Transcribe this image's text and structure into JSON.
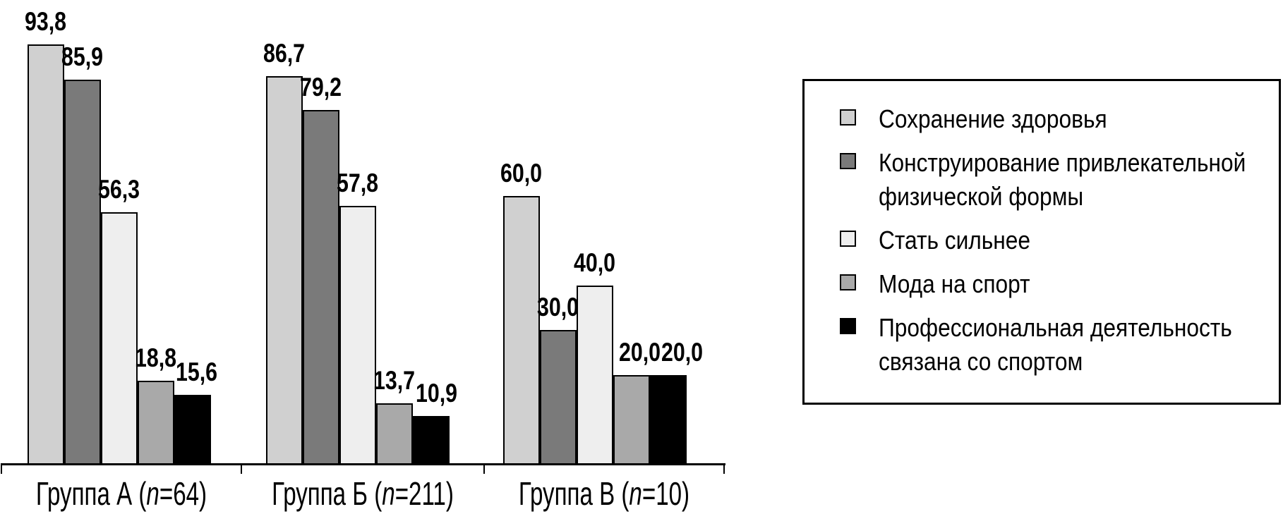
{
  "chart_data": {
    "type": "bar",
    "title": "",
    "categories": [
      "Группа А (n=64)",
      "Группа Б (n=211)",
      "Группа В (n=10)"
    ],
    "category_parts": [
      {
        "pre": "Группа А (",
        "italic": "n",
        "post": "=64)"
      },
      {
        "pre": "Группа Б (",
        "italic": "n",
        "post": "=211)"
      },
      {
        "pre": "Группа В (",
        "italic": "n",
        "post": "=10)"
      }
    ],
    "series": [
      {
        "name": "Сохранение здоровья",
        "color": "#d0d0d0",
        "values": [
          93.8,
          86.7,
          60.0
        ],
        "labels": [
          "93,8",
          "86,7",
          "60,0"
        ]
      },
      {
        "name": "Конструирование привлекательной физической формы",
        "color": "#7a7a7a",
        "values": [
          85.9,
          79.2,
          30.0
        ],
        "labels": [
          "85,9",
          "79,2",
          "30,0"
        ]
      },
      {
        "name": "Стать сильнее",
        "color": "#eeeeee",
        "values": [
          56.3,
          57.8,
          40.0
        ],
        "labels": [
          "56,3",
          "57,8",
          "40,0"
        ]
      },
      {
        "name": "Мода на спорт",
        "color": "#a9a9a9",
        "values": [
          18.8,
          13.7,
          20.0
        ],
        "labels": [
          "18,8",
          "13,7",
          "20,0"
        ]
      },
      {
        "name": "Профессиональная деятельность связана со спортом",
        "color": "#000000",
        "values": [
          15.6,
          10.9,
          20.0
        ],
        "labels": [
          "15,6",
          "10,9",
          "20,0"
        ]
      }
    ],
    "ylim": [
      0,
      100
    ],
    "grid": false,
    "y_axis_visible": false,
    "legend_position": "right",
    "value_label_decimal_separator": ","
  },
  "legend": {
    "border_color": "#000000",
    "items": [
      {
        "color": "#d0d0d0",
        "lines": [
          "Сохранение здоровья"
        ]
      },
      {
        "color": "#7a7a7a",
        "lines": [
          "Конструирование привлекательной",
          "физической формы"
        ]
      },
      {
        "color": "#eeeeee",
        "lines": [
          "Стать сильнее"
        ]
      },
      {
        "color": "#a9a9a9",
        "lines": [
          "Мода на спорт"
        ]
      },
      {
        "color": "#000000",
        "lines": [
          "Профессиональная деятельность",
          "связана со спортом"
        ]
      }
    ]
  },
  "colors": {
    "axis": "#000000",
    "text": "#000000",
    "background": "#ffffff"
  }
}
